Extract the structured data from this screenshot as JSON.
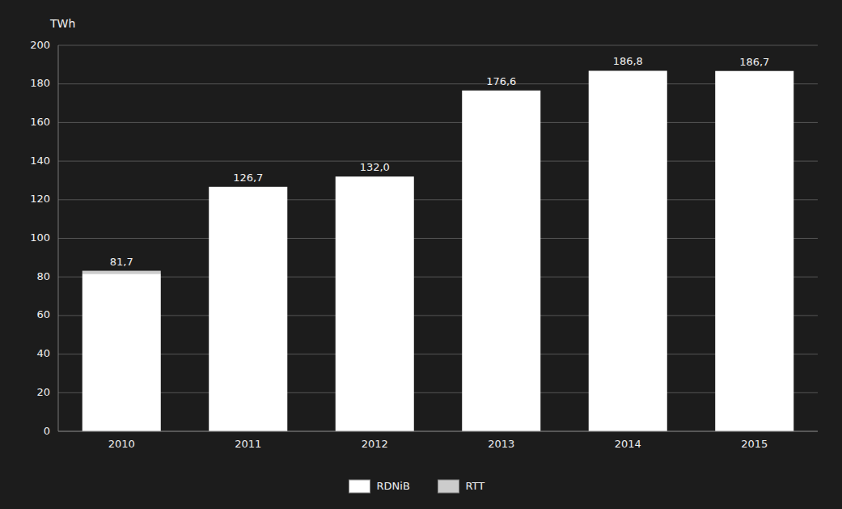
{
  "chart_data": {
    "type": "bar",
    "stacked": true,
    "ylabel": "TWh",
    "categories": [
      "2010",
      "2011",
      "2012",
      "2013",
      "2014",
      "2015"
    ],
    "series": [
      {
        "name": "RDNiB",
        "color": "#ffffff",
        "values": [
          81.7,
          126.7,
          132.0,
          176.6,
          186.8,
          186.7
        ],
        "value_labels": [
          "81,7",
          "126,7",
          "132,0",
          "176,6",
          "186,8",
          "186,7"
        ]
      },
      {
        "name": "RTT",
        "color": "#cccccc",
        "values": [
          1.5,
          0.0,
          0.0,
          0.0,
          0.0,
          0.0
        ]
      }
    ],
    "ylim": [
      0,
      200
    ],
    "yticks": [
      0,
      20,
      40,
      60,
      80,
      100,
      120,
      140,
      160,
      180,
      200
    ],
    "grid": true,
    "legend": "bottom",
    "data_labels": true
  }
}
